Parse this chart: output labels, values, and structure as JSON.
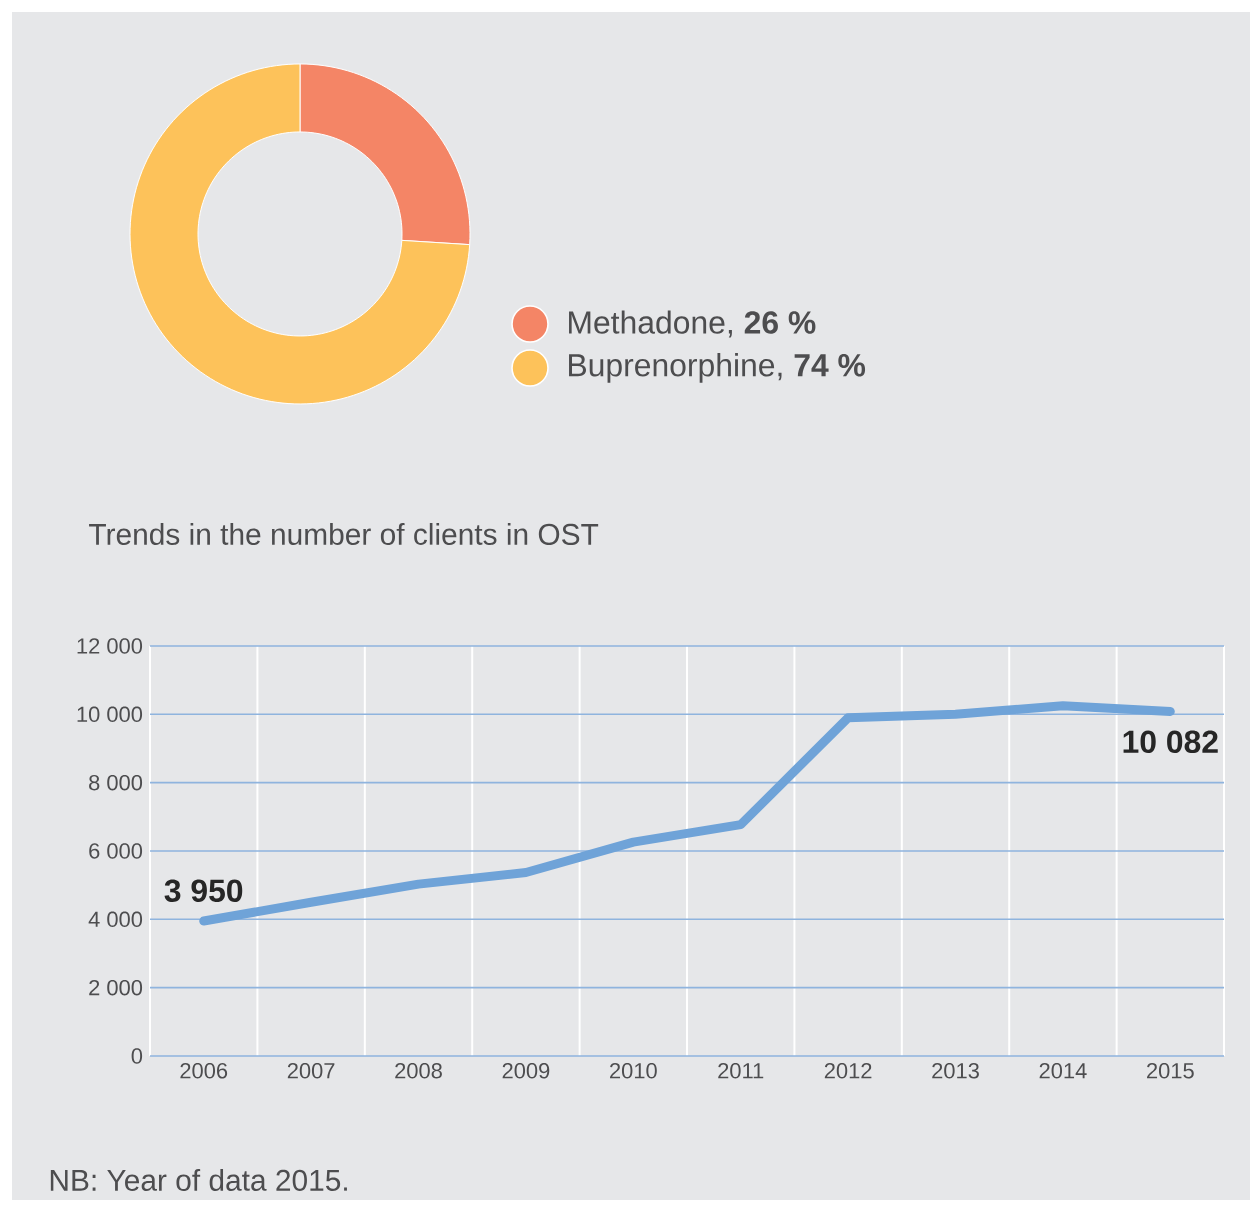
{
  "chart_data": [
    {
      "type": "donut",
      "categories": [
        "Methadone, **26 %**",
        "Buprenorphine, **74 %**"
      ],
      "values": [
        26,
        74
      ],
      "colors": [
        "#f48566",
        "#fdc25a"
      ],
      "legend": "right"
    },
    {
      "type": "line",
      "title": "Trends in the number of clients in OST",
      "categories": [
        "2006",
        "2007",
        "2008",
        "2009",
        "2010",
        "2011",
        "2012",
        "2013",
        "2014",
        "2015"
      ],
      "series": [
        {
          "color": "#6fa3d8",
          "values": [
            3950,
            4500,
            5030,
            5370,
            6260,
            6770,
            9900,
            10000,
            10250,
            10082
          ]
        }
      ],
      "value_labels": [
        "3 950",
        null,
        null,
        null,
        null,
        null,
        null,
        null,
        null,
        "10 082"
      ],
      "ylim": [
        0,
        12000
      ],
      "yticks": [
        0,
        {
          "value": 2000,
          "label": "2 000"
        },
        {
          "value": 4000,
          "label": "4 000"
        },
        {
          "value": 6000,
          "label": "6 000"
        },
        {
          "value": 8000,
          "label": "8 000"
        },
        {
          "value": 10000,
          "label": "10 000"
        },
        {
          "value": 12000,
          "label": "12 000"
        }
      ],
      "grid": true,
      "legend": false,
      "annotations": [
        "NB: Year of data 2015."
      ]
    }
  ]
}
